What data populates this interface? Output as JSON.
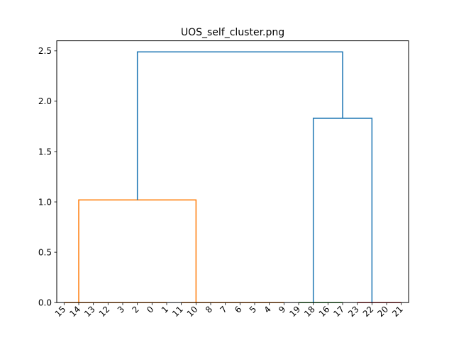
{
  "chart_data": {
    "type": "dendrogram",
    "title": "UOS_self_cluster.png",
    "xlabel": "",
    "ylabel": "",
    "ylim": [
      0,
      2.6
    ],
    "yticks": [
      "0.0",
      "0.5",
      "1.0",
      "1.5",
      "2.0",
      "2.5"
    ],
    "ytick_values": [
      0.0,
      0.5,
      1.0,
      1.5,
      2.0,
      2.5
    ],
    "leaf_order": [
      "15",
      "14",
      "13",
      "12",
      "3",
      "2",
      "0",
      "1",
      "11",
      "10",
      "8",
      "7",
      "6",
      "5",
      "4",
      "9",
      "19",
      "18",
      "16",
      "17",
      "23",
      "22",
      "20",
      "21"
    ],
    "links": [
      {
        "x0": 0.0,
        "x1": 7.0,
        "y": 0.0,
        "color": "#ff7f0e"
      },
      {
        "x0": 8.0,
        "x1": 15.0,
        "y": 0.0,
        "color": "#ff7f0e"
      },
      {
        "x0": 1.0,
        "x1": 9.0,
        "y": 1.02,
        "color": "#ff7f0e"
      },
      {
        "x0": 16.0,
        "x1": 19.0,
        "y": 0.0,
        "color": "#2ca02c"
      },
      {
        "x0": 20.0,
        "x1": 23.0,
        "y": 0.0,
        "color": "#d62728"
      },
      {
        "x0": 17.0,
        "x1": 21.0,
        "y": 1.83,
        "color": "#1f77b4"
      },
      {
        "x0": 5.0,
        "x1": 19.0,
        "y": 2.49,
        "color": "#1f77b4"
      }
    ],
    "grid": false,
    "colors": {
      "cluster_a": "#ff7f0e",
      "cluster_b": "#2ca02c",
      "cluster_c": "#d62728",
      "above_threshold": "#1f77b4"
    }
  }
}
